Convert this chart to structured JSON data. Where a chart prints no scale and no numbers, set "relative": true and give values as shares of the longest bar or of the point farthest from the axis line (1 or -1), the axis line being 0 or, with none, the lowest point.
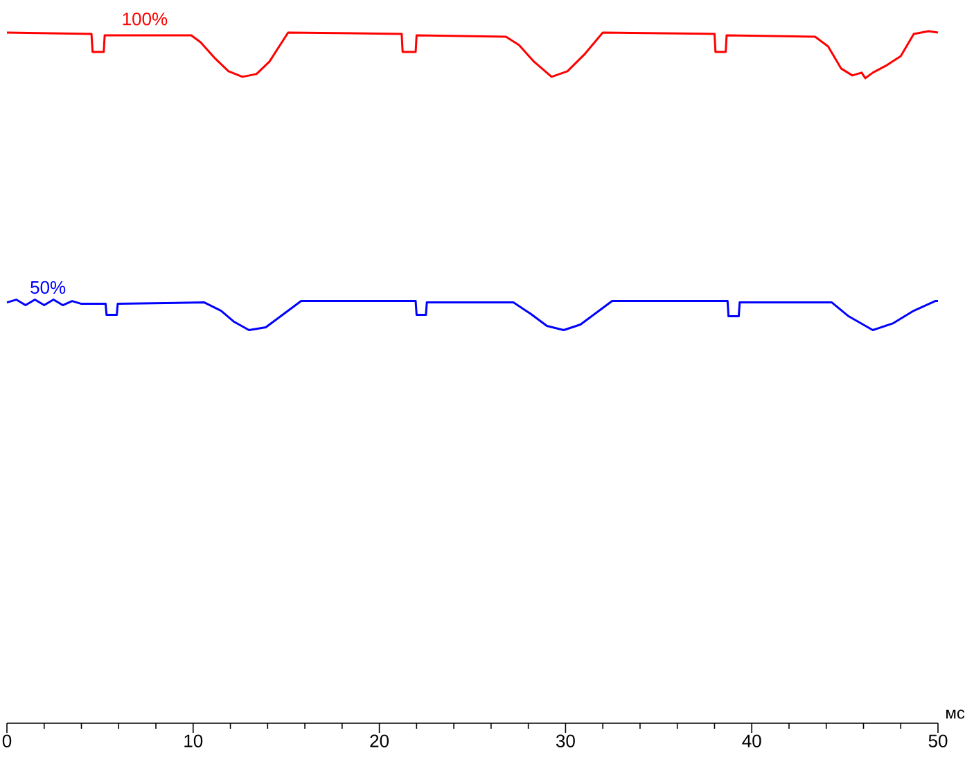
{
  "chart_data": {
    "type": "line",
    "relative": true,
    "xlabel": "мс",
    "xlim": [
      0,
      50
    ],
    "xticks": [
      0,
      {
        "value": 2,
        "label": null
      },
      {
        "value": 4,
        "label": null
      },
      {
        "value": 6,
        "label": null
      },
      {
        "value": 8,
        "label": null
      },
      10,
      {
        "value": 12,
        "label": null
      },
      {
        "value": 14,
        "label": null
      },
      {
        "value": 16,
        "label": null
      },
      {
        "value": 18,
        "label": null
      },
      20,
      {
        "value": 22,
        "label": null
      },
      {
        "value": 24,
        "label": null
      },
      {
        "value": 26,
        "label": null
      },
      {
        "value": 28,
        "label": null
      },
      30,
      {
        "value": 32,
        "label": null
      },
      {
        "value": 34,
        "label": null
      },
      {
        "value": 36,
        "label": null
      },
      {
        "value": 38,
        "label": null
      },
      40,
      {
        "value": 42,
        "label": null
      },
      {
        "value": 44,
        "label": null
      },
      {
        "value": 46,
        "label": null
      },
      {
        "value": 48,
        "label": null
      },
      50
    ],
    "series": [
      {
        "name": "100%",
        "color": "#ff0000",
        "x": [
          0,
          4.54,
          4.6,
          5.2,
          5.25,
          9.9,
          10.4,
          11.2,
          11.9,
          12.65,
          13.4,
          14.1,
          15.1,
          21.2,
          21.25,
          21.95,
          22.0,
          26.8,
          27.5,
          28.3,
          29.25,
          30.1,
          31.0,
          32.0,
          38.0,
          38.05,
          38.6,
          38.65,
          43.4,
          44.1,
          44.8,
          45.4,
          45.9,
          46.1,
          46.5,
          47.2,
          48.0,
          48.7,
          49.5,
          50
        ],
        "values": [
          0.998,
          0.996,
          0.97,
          0.97,
          0.994,
          0.994,
          0.984,
          0.96,
          0.942,
          0.934,
          0.938,
          0.956,
          0.998,
          0.996,
          0.97,
          0.97,
          0.994,
          0.992,
          0.98,
          0.956,
          0.934,
          0.942,
          0.966,
          0.998,
          0.996,
          0.97,
          0.97,
          0.994,
          0.992,
          0.978,
          0.946,
          0.936,
          0.94,
          0.932,
          0.94,
          0.95,
          0.964,
          0.996,
          1.0,
          0.998
        ]
      },
      {
        "name": "50%",
        "color": "#0000ff",
        "x": [
          0,
          0.5,
          1.0,
          1.5,
          2.0,
          2.5,
          3.0,
          3.5,
          4.0,
          5.3,
          5.35,
          5.9,
          5.95,
          10.6,
          11.5,
          12.2,
          13.0,
          13.9,
          14.8,
          15.8,
          21.95,
          22.0,
          22.5,
          22.55,
          27.2,
          28.1,
          29.0,
          29.9,
          30.8,
          31.7,
          32.5,
          38.7,
          38.75,
          39.3,
          39.35,
          44.3,
          45.2,
          46.5,
          47.6,
          48.7,
          49.85,
          50
        ],
        "values": [
          0.608,
          0.612,
          0.604,
          0.612,
          0.604,
          0.612,
          0.604,
          0.61,
          0.606,
          0.606,
          0.59,
          0.59,
          0.606,
          0.608,
          0.596,
          0.58,
          0.568,
          0.572,
          0.59,
          0.61,
          0.61,
          0.59,
          0.59,
          0.608,
          0.608,
          0.592,
          0.574,
          0.568,
          0.576,
          0.594,
          0.61,
          0.61,
          0.588,
          0.588,
          0.608,
          0.608,
          0.588,
          0.568,
          0.578,
          0.596,
          0.61,
          0.61
        ]
      }
    ]
  }
}
